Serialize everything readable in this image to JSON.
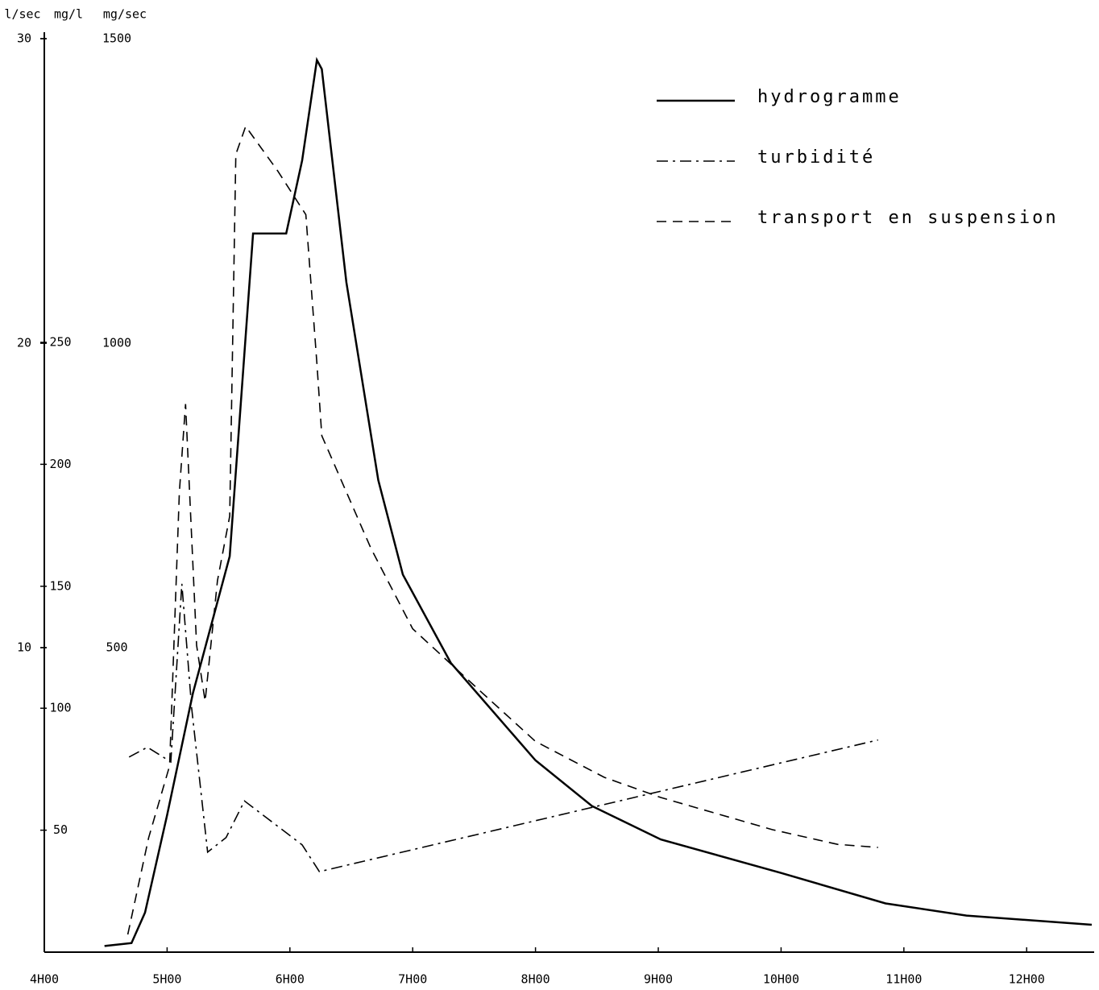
{
  "chart_data": {
    "type": "line",
    "x_unit_label": null,
    "y_label": "l/sec",
    "y2_label": "mg/l",
    "y3_label": "mg/sec",
    "xlim": [
      4,
      12.53
    ],
    "xticks": [
      {
        "value": 4,
        "label": "4H00"
      },
      {
        "value": 5,
        "label": "5H00"
      },
      {
        "value": 6,
        "label": "6H00"
      },
      {
        "value": 7,
        "label": "7H00"
      },
      {
        "value": 8,
        "label": "8H00"
      },
      {
        "value": 9,
        "label": "9H00"
      },
      {
        "value": 10,
        "label": "10H00"
      },
      {
        "value": 11,
        "label": "11H00"
      },
      {
        "value": 12,
        "label": "12H00"
      }
    ],
    "ylim": [
      0,
      30
    ],
    "yticks": [
      10,
      20,
      30
    ],
    "y2lim": [
      0,
      374.5
    ],
    "y2ticks": [
      50,
      100,
      150,
      200,
      250
    ],
    "y3lim": [
      0,
      1500
    ],
    "y3ticks": [
      500,
      1000,
      1500
    ],
    "legend": "top-right",
    "series": [
      {
        "name": "hydrogramme",
        "color": "#000000",
        "dash": "solid",
        "axis": "y",
        "x": [
          4.49,
          4.71,
          4.82,
          5.0,
          5.21,
          5.51,
          5.6,
          5.7,
          5.97,
          6.1,
          6.22,
          6.26,
          6.46,
          6.72,
          6.92,
          7.31,
          8.0,
          8.46,
          9.02,
          10.0,
          10.85,
          11.51,
          12.53
        ],
        "values": [
          0.2,
          0.3,
          1.3,
          4.5,
          8.5,
          13,
          18,
          23.6,
          23.6,
          26,
          29.3,
          29,
          22,
          15.5,
          12.4,
          9.5,
          6.3,
          4.8,
          3.7,
          2.6,
          1.6,
          1.2,
          0.9
        ]
      },
      {
        "name": "turbidité",
        "color": "#000000",
        "dash": "dashdot",
        "axis": "y2",
        "x": [
          4.69,
          4.84,
          5.03,
          5.12,
          5.2,
          5.33,
          5.48,
          5.63,
          6.1,
          6.24,
          10.79
        ],
        "values": [
          80,
          84,
          78,
          151,
          100,
          41,
          47,
          62,
          44,
          33,
          87
        ]
      },
      {
        "name": "transport en suspension",
        "color": "#000000",
        "dash": "dashed",
        "axis": "y3",
        "x": [
          4.68,
          4.85,
          5.02,
          5.1,
          5.15,
          5.24,
          5.31,
          5.41,
          5.51,
          5.56,
          5.64,
          5.9,
          6.13,
          6.22,
          6.26,
          6.66,
          7.0,
          7.57,
          8.0,
          8.56,
          9.02,
          9.93,
          10.46,
          10.79
        ],
        "values": [
          29,
          188,
          306,
          755,
          900,
          504,
          412,
          610,
          716,
          1310,
          1356,
          1283,
          1211,
          967,
          848,
          663,
          531,
          425,
          346,
          287,
          254,
          201,
          177,
          172
        ]
      }
    ]
  }
}
